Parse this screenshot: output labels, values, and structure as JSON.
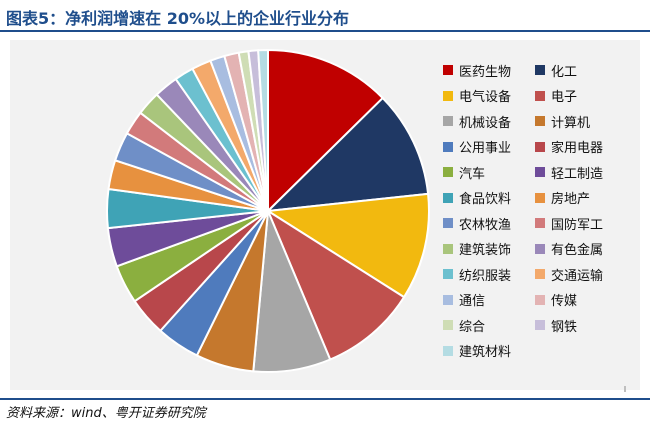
{
  "header": {
    "title": "图表5：净利润增速在 20%以上的企业行业分布"
  },
  "footer": {
    "source": "资料来源：wind、粤开证券研究院"
  },
  "chart_data": {
    "type": "pie",
    "title": "",
    "slices": [
      {
        "name": "医药生物",
        "value": 13.0,
        "color": "#C00000"
      },
      {
        "name": "化工",
        "value": 11.0,
        "color": "#1F3864"
      },
      {
        "name": "电气设备",
        "value": 11.0,
        "color": "#F2B90F"
      },
      {
        "name": "电子",
        "value": 10.0,
        "color": "#C0504D"
      },
      {
        "name": "机械设备",
        "value": 8.0,
        "color": "#A6A6A6"
      },
      {
        "name": "计算机",
        "value": 6.0,
        "color": "#C5782D"
      },
      {
        "name": "公用事业",
        "value": 4.5,
        "color": "#4F7BBD"
      },
      {
        "name": "家用电器",
        "value": 4.0,
        "color": "#B8474B"
      },
      {
        "name": "汽车",
        "value": 4.0,
        "color": "#8BAF3F"
      },
      {
        "name": "轻工制造",
        "value": 4.0,
        "color": "#6E4C9A"
      },
      {
        "name": "食品饮料",
        "value": 4.0,
        "color": "#3FA3B6"
      },
      {
        "name": "房地产",
        "value": 3.0,
        "color": "#E7913F"
      },
      {
        "name": "农林牧渔",
        "value": 3.0,
        "color": "#6F8FC7"
      },
      {
        "name": "国防军工",
        "value": 2.5,
        "color": "#D27A7B"
      },
      {
        "name": "建筑装饰",
        "value": 2.5,
        "color": "#A9C57C"
      },
      {
        "name": "有色金属",
        "value": 2.5,
        "color": "#9A88B9"
      },
      {
        "name": "纺织服装",
        "value": 2.0,
        "color": "#6CC0CF"
      },
      {
        "name": "交通运输",
        "value": 2.0,
        "color": "#F3A96B"
      },
      {
        "name": "通信",
        "value": 1.5,
        "color": "#A8BDE0"
      },
      {
        "name": "传媒",
        "value": 1.5,
        "color": "#E3B3B3"
      },
      {
        "name": "综合",
        "value": 1.0,
        "color": "#CFDDB5"
      },
      {
        "name": "钢铁",
        "value": 1.0,
        "color": "#C7BEDA"
      },
      {
        "name": "建筑材料",
        "value": 1.0,
        "color": "#B4DCE3"
      }
    ],
    "legend_position": "right"
  }
}
